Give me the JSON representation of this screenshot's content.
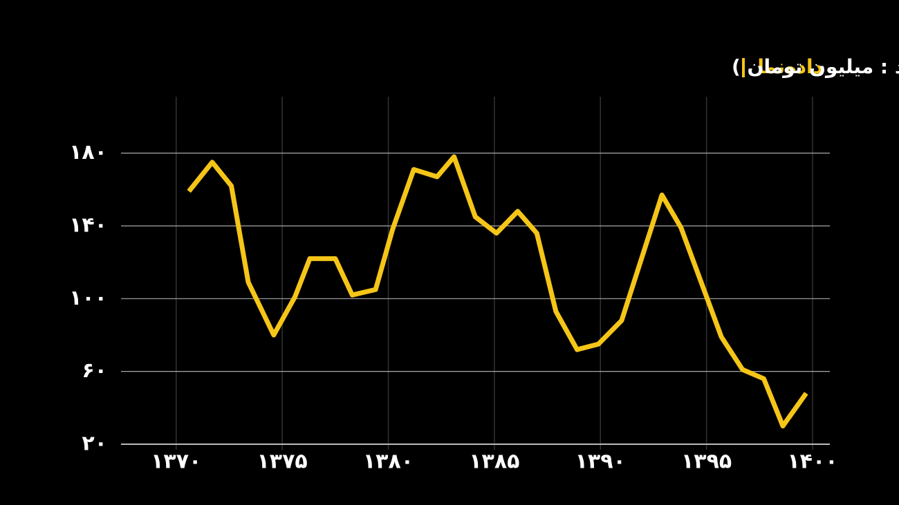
{
  "chart_data": {
    "type": "line",
    "brand": "داده‌نما",
    "title": "دیه کامل انسان بر حسب سکه بهار آزادی (واحد : میلیون تومان )",
    "x": [
      1370.6,
      1371.7,
      1372.6,
      1373.4,
      1374.6,
      1375.6,
      1376.3,
      1377.5,
      1378.3,
      1379.4,
      1380.2,
      1381.2,
      1382.3,
      1383.1,
      1384.1,
      1385.1,
      1386.1,
      1387.0,
      1387.9,
      1388.9,
      1389.9,
      1391.0,
      1392.9,
      1393.8,
      1395.7,
      1396.7,
      1397.7,
      1398.6,
      1399.7
    ],
    "series": [
      {
        "name": null,
        "color": "#f5c518",
        "values": [
          159,
          175,
          162,
          109,
          80,
          101,
          122,
          122,
          102,
          105,
          138,
          171,
          167,
          178,
          145,
          136,
          148,
          136,
          93,
          72,
          75,
          88,
          157,
          139,
          79,
          61,
          56,
          30,
          48
        ]
      }
    ],
    "xlim": [
      1367.4,
      1400
    ],
    "ylim": [
      20,
      211
    ],
    "xticks": [
      {
        "value": 1370,
        "label": "۱۳۷۰"
      },
      {
        "value": 1375,
        "label": "۱۳۷۵"
      },
      {
        "value": 1380,
        "label": "۱۳۸۰"
      },
      {
        "value": 1385,
        "label": "۱۳۸۵"
      },
      {
        "value": 1390,
        "label": "۱۳۹۰"
      },
      {
        "value": 1395,
        "label": "۱۳۹۵"
      },
      {
        "value": 1400,
        "label": "۱۴۰۰"
      }
    ],
    "yticks": [
      {
        "value": 20,
        "label": "۲۰"
      },
      {
        "value": 60,
        "label": "۶۰"
      },
      {
        "value": 100,
        "label": "۱۰۰"
      },
      {
        "value": 140,
        "label": "۱۴۰"
      },
      {
        "value": 180,
        "label": "۱۸۰"
      }
    ],
    "grid": true
  }
}
